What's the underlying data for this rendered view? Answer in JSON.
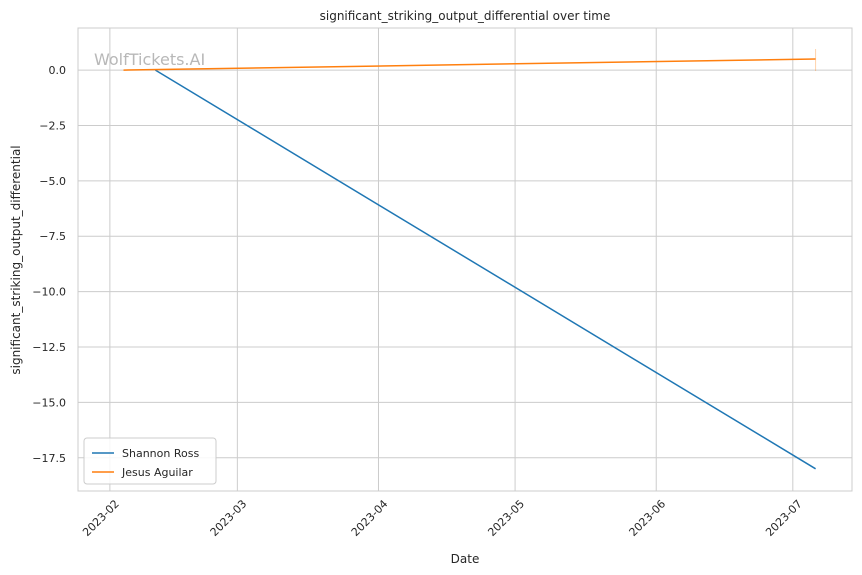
{
  "chart_data": {
    "type": "line",
    "title": "significant_striking_output_differential over time",
    "xlabel": "Date",
    "ylabel": "significant_striking_output_differential",
    "watermark": "WolfTickets.AI",
    "x_ticks": [
      "2023-02",
      "2023-03",
      "2023-04",
      "2023-05",
      "2023-06",
      "2023-07"
    ],
    "y_ticks": [
      "0.0",
      "−2.5",
      "−5.0",
      "−7.5",
      "−10.0",
      "−12.5",
      "−15.0",
      "−17.5"
    ],
    "y_tick_values": [
      0,
      -2.5,
      -5,
      -7.5,
      -10,
      -12.5,
      -15,
      -17.5
    ],
    "xlim": [
      "2023-01-25",
      "2023-07-14"
    ],
    "ylim": [
      -19.0,
      1.9
    ],
    "grid": true,
    "legend_position": "bottom-left",
    "series": [
      {
        "name": "Shannon Ross",
        "color": "#1f77b4",
        "points": [
          {
            "x": "2023-02-11",
            "y": 0.0
          },
          {
            "x": "2023-07-06",
            "y": -18.0
          }
        ]
      },
      {
        "name": "Jesus Aguilar",
        "color": "#ff7f0e",
        "points": [
          {
            "x": "2023-02-04",
            "y": 0.0
          },
          {
            "x": "2023-07-06",
            "y": 0.5
          }
        ]
      }
    ]
  }
}
